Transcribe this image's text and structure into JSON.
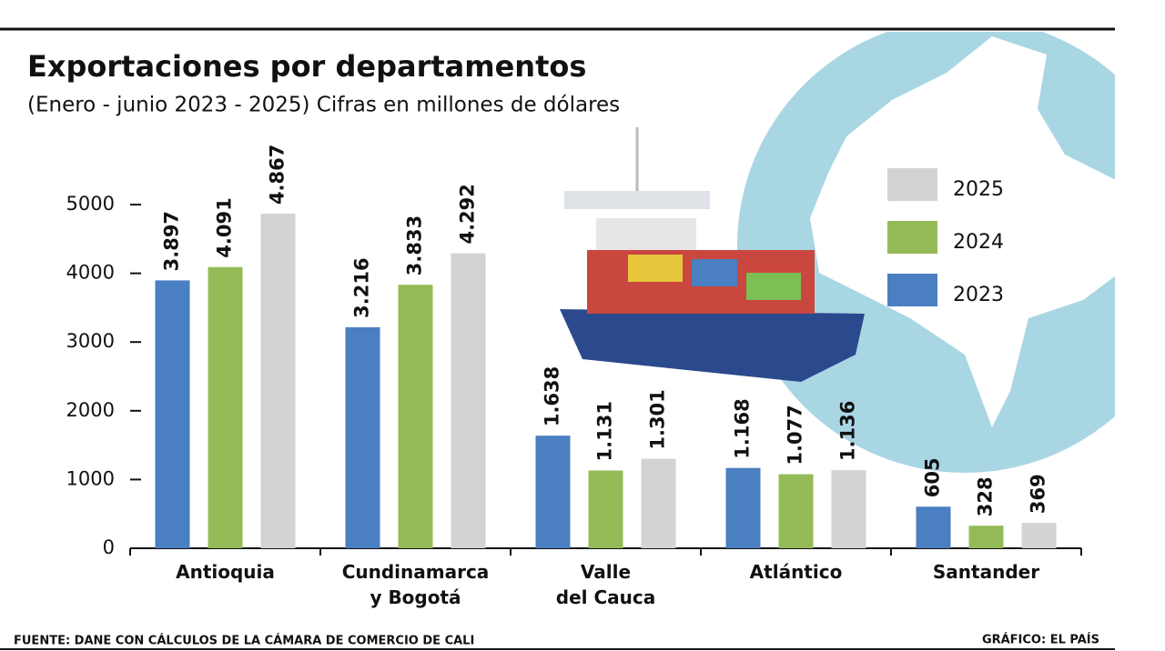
{
  "chart_data": {
    "type": "bar",
    "title": "Exportaciones por departamentos",
    "subtitle": "(Enero -  junio 2023 - 2025) Cifras en millones de dólares",
    "categories": [
      "Antioquia",
      "Cundinamarca\ny Bogotá",
      "Valle\ndel Cauca",
      "Atlántico",
      "Santander"
    ],
    "series": [
      {
        "name": "2023",
        "color": "#4a7fc1",
        "values": [
          3897,
          3216,
          1638,
          1168,
          605
        ],
        "value_labels": [
          "3.897",
          "3.216",
          "1.638",
          "1.168",
          "605"
        ]
      },
      {
        "name": "2024",
        "color": "#95bb59",
        "values": [
          4091,
          3833,
          1131,
          1077,
          328
        ],
        "value_labels": [
          "4.091",
          "3.833",
          "1.131",
          "1.077",
          "328"
        ]
      },
      {
        "name": "2025",
        "color": "#d3d3d3",
        "values": [
          4867,
          4292,
          1301,
          1136,
          369
        ],
        "value_labels": [
          "4.867",
          "4.292",
          "1.301",
          "1.136",
          "369"
        ]
      }
    ],
    "ylim": [
      0,
      5000
    ],
    "yticks": [
      0,
      1000,
      2000,
      3000,
      4000,
      5000
    ],
    "legend": "top-right",
    "source": "FUENTE: DANE CON CÁLCULOS DE LA CÁMARA DE COMERCIO DE CALI",
    "credit": "GRÁFICO: EL PAÍS"
  }
}
